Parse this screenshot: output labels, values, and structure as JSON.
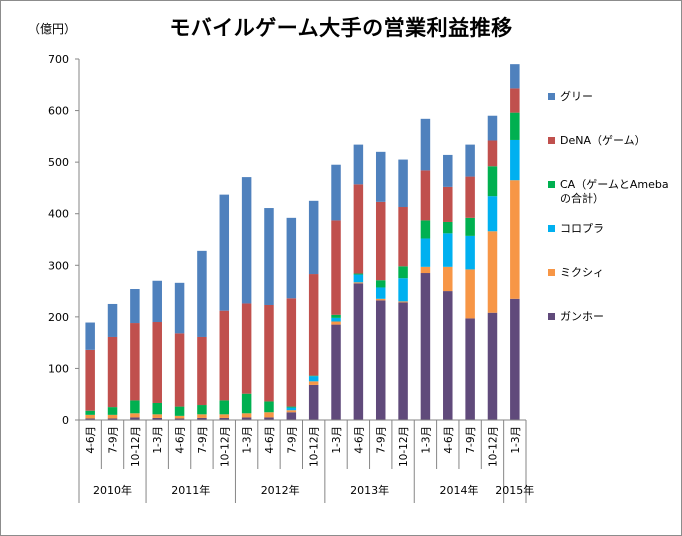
{
  "title": "モバイルゲーム大手の営業利益推移",
  "y_unit": "（億円）",
  "legend": [
    {
      "name": "グリー",
      "color": "#4f81bd"
    },
    {
      "name": "DeNA（ゲーム）",
      "color": "#c0504d"
    },
    {
      "name": "CA（ゲームとAmeba\nの合計）",
      "color": "#00b050"
    },
    {
      "name": "コロプラ",
      "color": "#00b0f0"
    },
    {
      "name": "ミクシィ",
      "color": "#f79646"
    },
    {
      "name": "ガンホー",
      "color": "#604a7b"
    }
  ],
  "chart_data": {
    "type": "bar",
    "stacked": true,
    "title": "モバイルゲーム大手の営業利益推移",
    "ylabel": "（億円）",
    "ylim": [
      0,
      700
    ],
    "yticks": [
      0,
      100,
      200,
      300,
      400,
      500,
      600,
      700
    ],
    "categories": [
      "4-6月",
      "7-9月",
      "10-12月",
      "1-3月",
      "4-6月",
      "7-9月",
      "10-12月",
      "1-3月",
      "4-6月",
      "7-9月",
      "10-12月",
      "1-3月",
      "4-6月",
      "7-9月",
      "10-12月",
      "1-3月",
      "4-6月",
      "7-9月",
      "10-12月",
      "1-3月"
    ],
    "year_groups": [
      {
        "label": "2010年",
        "count": 3
      },
      {
        "label": "2011年",
        "count": 4
      },
      {
        "label": "2012年",
        "count": 4
      },
      {
        "label": "2013年",
        "count": 4
      },
      {
        "label": "2014年",
        "count": 4
      },
      {
        "label": "2015年",
        "count": 1
      }
    ],
    "series": [
      {
        "name": "ガンホー",
        "color": "#604a7b",
        "values": [
          3,
          3,
          5,
          4,
          3,
          4,
          4,
          5,
          5,
          15,
          68,
          185,
          265,
          232,
          228,
          285,
          250,
          197,
          208,
          235
        ]
      },
      {
        "name": "ミクシィ",
        "color": "#f79646",
        "values": [
          7,
          7,
          8,
          7,
          5,
          7,
          7,
          8,
          10,
          4,
          7,
          6,
          2,
          3,
          2,
          12,
          47,
          95,
          158,
          230
        ]
      },
      {
        "name": "コロプラ",
        "color": "#00b0f0",
        "values": [
          0,
          0,
          0,
          0,
          0,
          0,
          0,
          0,
          0,
          5,
          10,
          7,
          15,
          22,
          45,
          55,
          65,
          65,
          68,
          78
        ]
      },
      {
        "name": "CA（ゲームとAmeba\nの合計）",
        "color": "#00b050",
        "values": [
          8,
          15,
          25,
          22,
          18,
          18,
          27,
          38,
          21,
          2,
          1,
          6,
          2,
          14,
          23,
          35,
          22,
          35,
          58,
          53
        ]
      },
      {
        "name": "DeNA（ゲーム）",
        "color": "#c0504d",
        "values": [
          118,
          136,
          150,
          157,
          142,
          132,
          174,
          175,
          187,
          210,
          197,
          183,
          173,
          152,
          115,
          97,
          68,
          80,
          50,
          47
        ]
      },
      {
        "name": "グリー",
        "color": "#4f81bd",
        "values": [
          53,
          64,
          66,
          80,
          98,
          167,
          225,
          245,
          188,
          156,
          142,
          108,
          77,
          97,
          92,
          100,
          62,
          62,
          48,
          47
        ]
      }
    ]
  }
}
